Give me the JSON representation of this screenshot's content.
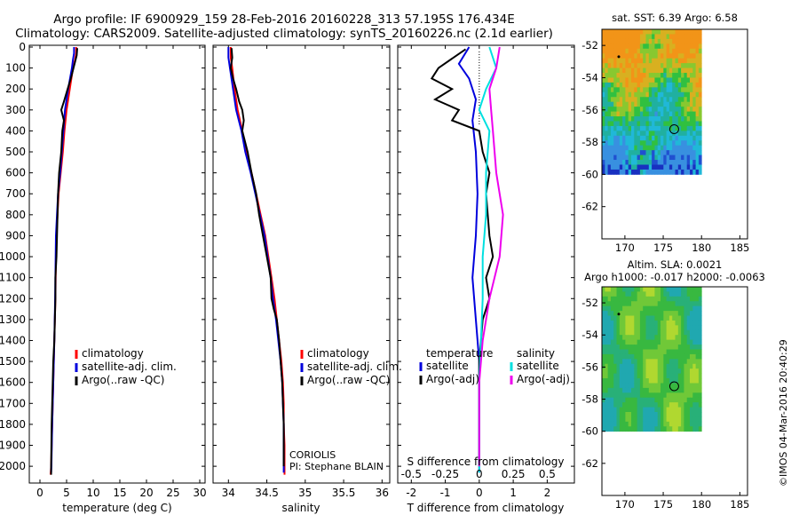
{
  "header": {
    "line1": "Argo profile: IF 6900929_159 28-Feb-2016 20160228_313 57.195S 176.434E",
    "line2": "Climatology: CARS2009. Satellite-adjusted climatology: synTS_20160226.nc (2.1d earlier)"
  },
  "credit": "©IMOS 04-Mar-2016 20:40:29",
  "colors": {
    "climatology": "#ff0000",
    "satellite": "#0000dd",
    "argo": "#000000",
    "sat_salinity": "#00e0e0",
    "argo_salinity": "#ee00ee"
  },
  "chart_data": [
    {
      "type": "line",
      "id": "temperature",
      "xlabel": "temperature (deg C)",
      "xlim": [
        -2,
        31
      ],
      "ylim": [
        2080,
        0
      ],
      "y_inverted": true,
      "xticks": [
        0,
        5,
        10,
        15,
        20,
        25,
        30
      ],
      "yticks": [
        0,
        100,
        200,
        300,
        400,
        500,
        600,
        700,
        800,
        900,
        1000,
        1100,
        1200,
        1300,
        1400,
        1500,
        1600,
        1700,
        1800,
        1900,
        2000
      ],
      "legend": [
        "climatology",
        "satellite-adj. clim.",
        "Argo(..raw -QC)"
      ],
      "series": [
        {
          "name": "climatology",
          "color": "#ff0000",
          "points": [
            [
              6.8,
              0
            ],
            [
              6.8,
              30
            ],
            [
              6.6,
              60
            ],
            [
              6.2,
              100
            ],
            [
              5.6,
              200
            ],
            [
              5.0,
              300
            ],
            [
              4.6,
              400
            ],
            [
              4.3,
              500
            ],
            [
              3.9,
              600
            ],
            [
              3.5,
              700
            ],
            [
              3.3,
              800
            ],
            [
              3.1,
              900
            ],
            [
              3.0,
              1000
            ],
            [
              2.9,
              1200
            ],
            [
              2.7,
              1400
            ],
            [
              2.5,
              1600
            ],
            [
              2.3,
              1800
            ],
            [
              2.1,
              2000
            ],
            [
              2.0,
              2040
            ]
          ]
        },
        {
          "name": "satellite-adj. clim.",
          "color": "#0000dd",
          "points": [
            [
              6.4,
              0
            ],
            [
              6.4,
              30
            ],
            [
              6.2,
              60
            ],
            [
              6.0,
              100
            ],
            [
              5.3,
              200
            ],
            [
              4.7,
              300
            ],
            [
              4.4,
              400
            ],
            [
              4.1,
              500
            ],
            [
              3.8,
              600
            ],
            [
              3.4,
              700
            ],
            [
              3.2,
              800
            ],
            [
              3.0,
              900
            ],
            [
              2.95,
              1000
            ],
            [
              2.85,
              1200
            ],
            [
              2.7,
              1400
            ],
            [
              2.5,
              1600
            ],
            [
              2.3,
              1800
            ],
            [
              2.15,
              2000
            ],
            [
              2.1,
              2030
            ]
          ]
        },
        {
          "name": "Argo(..raw -QC)",
          "color": "#000000",
          "points": [
            [
              7.0,
              5
            ],
            [
              6.9,
              40
            ],
            [
              6.5,
              80
            ],
            [
              5.8,
              150
            ],
            [
              5.2,
              200
            ],
            [
              4.5,
              260
            ],
            [
              4.0,
              300
            ],
            [
              4.5,
              350
            ],
            [
              4.2,
              400
            ],
            [
              4.0,
              500
            ],
            [
              3.6,
              600
            ],
            [
              3.4,
              700
            ],
            [
              3.3,
              800
            ],
            [
              3.2,
              900
            ],
            [
              3.1,
              1000
            ],
            [
              2.9,
              1100
            ],
            [
              2.9,
              1200
            ],
            [
              2.8,
              1300
            ],
            [
              2.7,
              1400
            ],
            [
              2.5,
              1500
            ],
            [
              2.4,
              1600
            ],
            [
              2.3,
              1700
            ],
            [
              2.2,
              1800
            ],
            [
              2.15,
              1900
            ],
            [
              2.1,
              2000
            ],
            [
              2.1,
              2040
            ]
          ]
        }
      ]
    },
    {
      "type": "line",
      "id": "salinity",
      "xlabel": "salinity",
      "xlim": [
        33.8,
        36.1
      ],
      "ylim": [
        2080,
        0
      ],
      "y_inverted": true,
      "xticks": [
        34,
        34.5,
        35,
        35.5,
        36
      ],
      "legend": [
        "climatology",
        "satellite-adj. clim.",
        "Argo(..raw -QC)"
      ],
      "annotations": [
        "CORIOLIS",
        "PI: Stephane BLAIN"
      ],
      "series": [
        {
          "name": "climatology",
          "color": "#ff0000",
          "points": [
            [
              34.03,
              0
            ],
            [
              34.03,
              50
            ],
            [
              34.05,
              100
            ],
            [
              34.08,
              200
            ],
            [
              34.12,
              300
            ],
            [
              34.18,
              400
            ],
            [
              34.23,
              500
            ],
            [
              34.3,
              600
            ],
            [
              34.36,
              700
            ],
            [
              34.42,
              800
            ],
            [
              34.48,
              900
            ],
            [
              34.52,
              1000
            ],
            [
              34.56,
              1100
            ],
            [
              34.6,
              1200
            ],
            [
              34.63,
              1300
            ],
            [
              34.66,
              1400
            ],
            [
              34.69,
              1500
            ],
            [
              34.71,
              1600
            ],
            [
              34.72,
              1700
            ],
            [
              34.72,
              1800
            ],
            [
              34.73,
              1900
            ],
            [
              34.73,
              2000
            ],
            [
              34.73,
              2040
            ]
          ]
        },
        {
          "name": "satellite-adj. clim.",
          "color": "#0000dd",
          "points": [
            [
              34.0,
              0
            ],
            [
              34.0,
              50
            ],
            [
              34.02,
              100
            ],
            [
              34.06,
              200
            ],
            [
              34.1,
              300
            ],
            [
              34.17,
              400
            ],
            [
              34.22,
              500
            ],
            [
              34.29,
              600
            ],
            [
              34.35,
              700
            ],
            [
              34.41,
              800
            ],
            [
              34.47,
              900
            ],
            [
              34.51,
              1000
            ],
            [
              34.55,
              1100
            ],
            [
              34.58,
              1200
            ],
            [
              34.62,
              1300
            ],
            [
              34.65,
              1400
            ],
            [
              34.68,
              1500
            ],
            [
              34.7,
              1600
            ],
            [
              34.71,
              1700
            ],
            [
              34.72,
              1800
            ],
            [
              34.72,
              1900
            ],
            [
              34.72,
              2000
            ],
            [
              34.72,
              2030
            ]
          ]
        },
        {
          "name": "Argo(..raw -QC)",
          "color": "#000000",
          "points": [
            [
              34.04,
              5
            ],
            [
              34.05,
              50
            ],
            [
              34.03,
              100
            ],
            [
              34.06,
              150
            ],
            [
              34.1,
              200
            ],
            [
              34.14,
              260
            ],
            [
              34.18,
              300
            ],
            [
              34.2,
              350
            ],
            [
              34.18,
              400
            ],
            [
              34.25,
              500
            ],
            [
              34.3,
              600
            ],
            [
              34.36,
              700
            ],
            [
              34.4,
              800
            ],
            [
              34.45,
              900
            ],
            [
              34.5,
              1000
            ],
            [
              34.55,
              1100
            ],
            [
              34.56,
              1200
            ],
            [
              34.59,
              1250
            ],
            [
              34.63,
              1300
            ],
            [
              34.66,
              1400
            ],
            [
              34.68,
              1500
            ],
            [
              34.7,
              1600
            ],
            [
              34.71,
              1700
            ],
            [
              34.72,
              1800
            ],
            [
              34.72,
              1900
            ],
            [
              34.72,
              2000
            ]
          ]
        }
      ]
    },
    {
      "type": "line",
      "id": "difference",
      "xlabel": "T difference from climatology",
      "top_label": "S difference from climatology",
      "xlim": [
        -2.4,
        2.8
      ],
      "ylim": [
        2080,
        0
      ],
      "y_inverted": true,
      "xticks": [
        -2,
        -1,
        0,
        1,
        2
      ],
      "sticks": [
        "-0.5",
        "-0.25",
        "0",
        "0.25",
        "0.5"
      ],
      "legend_headers": [
        "temperature",
        "salinity"
      ],
      "legend": [
        "satellite",
        "Argo(-adj)",
        "satellite",
        "Argo(-adj)"
      ],
      "series": [
        {
          "name": "satellite",
          "color": "#0000dd",
          "points": [
            [
              -0.3,
              0
            ],
            [
              -0.6,
              80
            ],
            [
              -0.3,
              150
            ],
            [
              -0.1,
              250
            ],
            [
              -0.2,
              350
            ],
            [
              -0.1,
              500
            ],
            [
              -0.05,
              700
            ],
            [
              -0.1,
              900
            ],
            [
              -0.2,
              1100
            ],
            [
              -0.1,
              1300
            ],
            [
              0.0,
              1500
            ],
            [
              0.0,
              1700
            ],
            [
              0.0,
              2000
            ],
            [
              0.0,
              2030
            ]
          ]
        },
        {
          "name": "Argo(-adj)",
          "color": "#000000",
          "points": [
            [
              -0.4,
              10
            ],
            [
              -1.2,
              100
            ],
            [
              -1.4,
              150
            ],
            [
              -0.8,
              200
            ],
            [
              -1.3,
              250
            ],
            [
              -0.6,
              300
            ],
            [
              -0.8,
              350
            ],
            [
              0.0,
              400
            ],
            [
              0.1,
              500
            ],
            [
              0.3,
              600
            ],
            [
              0.2,
              700
            ],
            [
              0.3,
              900
            ],
            [
              0.4,
              1000
            ],
            [
              0.2,
              1100
            ],
            [
              0.3,
              1200
            ],
            [
              0.1,
              1300
            ],
            [
              0.0,
              1500
            ],
            [
              0.0,
              1700
            ],
            [
              0.0,
              2000
            ]
          ]
        },
        {
          "name": "satellite",
          "color": "#00e0e0",
          "points": [
            [
              0.3,
              0
            ],
            [
              0.5,
              100
            ],
            [
              0.2,
              200
            ],
            [
              0.0,
              300
            ],
            [
              0.3,
              400
            ],
            [
              0.2,
              600
            ],
            [
              0.2,
              800
            ],
            [
              0.1,
              1000
            ],
            [
              0.1,
              1200
            ],
            [
              0.05,
              1400
            ],
            [
              0.0,
              1600
            ],
            [
              0.0,
              1800
            ],
            [
              0.0,
              2000
            ],
            [
              0.0,
              2030
            ]
          ]
        },
        {
          "name": "Argo(-adj)",
          "color": "#ee00ee",
          "points": [
            [
              0.6,
              0
            ],
            [
              0.5,
              100
            ],
            [
              0.3,
              200
            ],
            [
              0.35,
              300
            ],
            [
              0.4,
              400
            ],
            [
              0.5,
              600
            ],
            [
              0.7,
              800
            ],
            [
              0.6,
              1000
            ],
            [
              0.3,
              1200
            ],
            [
              0.1,
              1400
            ],
            [
              0.0,
              1600
            ],
            [
              0.0,
              1800
            ],
            [
              0.0,
              2000
            ]
          ]
        }
      ]
    },
    {
      "type": "heatmap",
      "id": "sst_map",
      "title": "sat. SST: 6.39 Argo: 6.58",
      "xlim": [
        167,
        186
      ],
      "ylim": [
        -64,
        -51
      ],
      "xticks": [
        170,
        175,
        180,
        185
      ],
      "yticks": [
        -52,
        -54,
        -56,
        -58,
        -60,
        -62
      ],
      "data_extent": {
        "lon": [
          167,
          180
        ],
        "lat": [
          -60,
          -51
        ]
      },
      "argo_position": {
        "lon": 176.434,
        "lat": -57.195
      },
      "previous_position": {
        "lon": 169.2,
        "lat": -52.7
      }
    },
    {
      "type": "heatmap",
      "id": "sla_map",
      "title": "Altim. SLA: 0.0021",
      "subtitle": "Argo h1000: -0.017 h2000: -0.0063",
      "xlim": [
        167,
        186
      ],
      "ylim": [
        -64,
        -51
      ],
      "xticks": [
        170,
        175,
        180,
        185
      ],
      "yticks": [
        -52,
        -54,
        -56,
        -58,
        -60,
        -62
      ],
      "data_extent": {
        "lon": [
          167,
          180
        ],
        "lat": [
          -60,
          -51
        ]
      },
      "argo_position": {
        "lon": 176.434,
        "lat": -57.195
      },
      "previous_position": {
        "lon": 169.2,
        "lat": -52.7
      }
    }
  ]
}
